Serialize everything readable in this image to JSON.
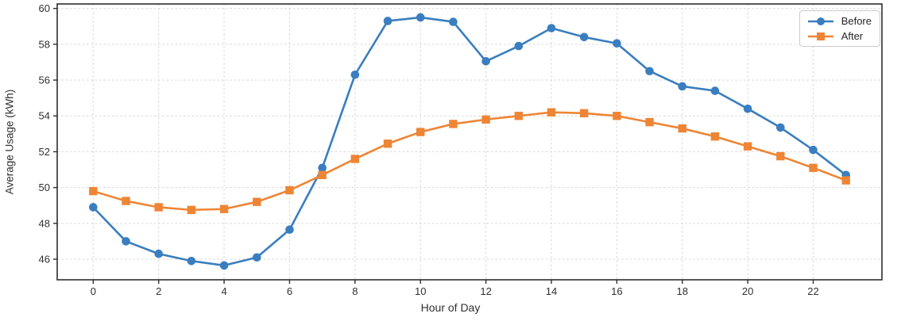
{
  "chart_data": {
    "type": "line",
    "title": "",
    "xlabel": "Hour of Day",
    "ylabel": "Average Usage (kWh)",
    "x": [
      0,
      1,
      2,
      3,
      4,
      5,
      6,
      7,
      8,
      9,
      10,
      11,
      12,
      13,
      14,
      15,
      16,
      17,
      18,
      19,
      20,
      21,
      22,
      23
    ],
    "series": [
      {
        "name": "Before",
        "color": "#3a7ebf",
        "marker": "circle",
        "values": [
          48.9,
          47.0,
          46.3,
          45.9,
          45.65,
          46.1,
          47.65,
          51.1,
          56.3,
          59.3,
          59.5,
          59.25,
          57.05,
          57.9,
          58.9,
          58.4,
          58.05,
          56.5,
          55.65,
          55.4,
          54.4,
          53.35,
          52.1,
          50.7
        ]
      },
      {
        "name": "After",
        "color": "#ee8535",
        "marker": "square",
        "values": [
          49.8,
          49.25,
          48.9,
          48.75,
          48.8,
          49.2,
          49.85,
          50.7,
          51.6,
          52.45,
          53.1,
          53.55,
          53.8,
          54.0,
          54.2,
          54.15,
          54.0,
          53.65,
          53.3,
          52.85,
          52.3,
          51.75,
          51.1,
          50.4
        ]
      }
    ],
    "xlim": [
      -1.1,
      24.1
    ],
    "ylim": [
      44.85,
      60.25
    ],
    "x_ticks": [
      0,
      2,
      4,
      6,
      8,
      10,
      12,
      14,
      16,
      18,
      20,
      22
    ],
    "y_ticks": [
      46,
      48,
      50,
      52,
      54,
      56,
      58,
      60
    ],
    "grid": true,
    "grid_style": "dashed",
    "legend_position": "upper right",
    "colors": {
      "spine": "#2e2e2e",
      "grid": "#d6d6d6",
      "tick_label": "#303030",
      "background": "#ffffff"
    }
  }
}
